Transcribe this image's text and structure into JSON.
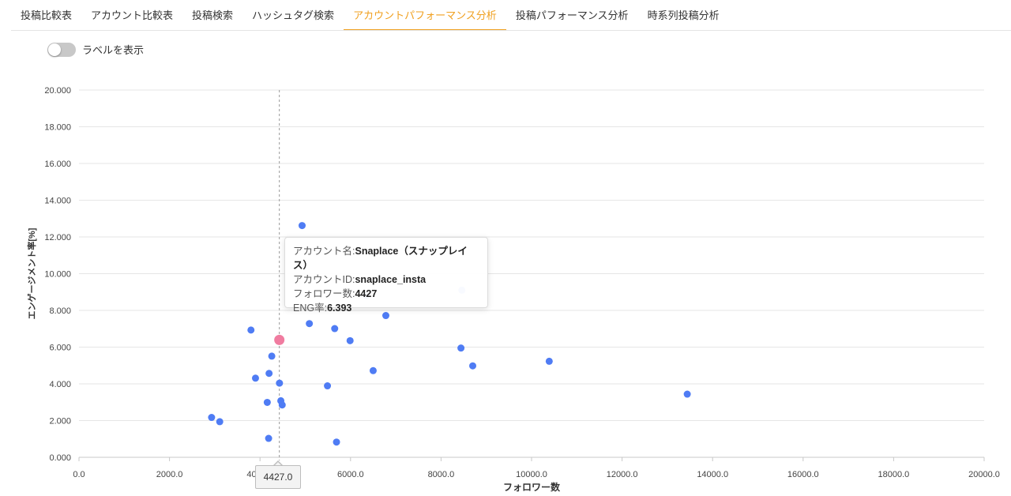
{
  "tabs": [
    {
      "label": "投稿比較表",
      "active": false
    },
    {
      "label": "アカウント比較表",
      "active": false
    },
    {
      "label": "投稿検索",
      "active": false
    },
    {
      "label": "ハッシュタグ検索",
      "active": false
    },
    {
      "label": "アカウントパフォーマンス分析",
      "active": true
    },
    {
      "label": "投稿パフォーマンス分析",
      "active": false
    },
    {
      "label": "時系列投稿分析",
      "active": false
    }
  ],
  "toggle": {
    "label": "ラベルを表示",
    "on": false
  },
  "colors": {
    "accent": "#f0a020",
    "point": "#4f7cf4",
    "highlight": "#f07ca0"
  },
  "tooltip": {
    "name_label": "アカウント名:",
    "name_value": "Snaplace（スナップレイス）",
    "id_label": "アカウントID:",
    "id_value": "snaplace_insta",
    "followers_label": "フォロワー数:",
    "followers_value": "4427",
    "eng_label": "ENG率:",
    "eng_value": "6.393"
  },
  "crosshair": {
    "x_label": "4427.0"
  },
  "chart_data": {
    "type": "scatter",
    "xlabel": "フォロワー数",
    "ylabel": "エンゲージメント率[%]",
    "xlim": [
      0,
      20000
    ],
    "ylim": [
      0,
      20
    ],
    "x_ticks": [
      "0.0",
      "2000.0",
      "4000.0",
      "6000.0",
      "8000.0",
      "10000.0",
      "12000.0",
      "14000.0",
      "16000.0",
      "18000.0",
      "20000.0"
    ],
    "y_ticks": [
      "0.000",
      "2.000",
      "4.000",
      "6.000",
      "8.000",
      "10.000",
      "12.000",
      "14.000",
      "16.000",
      "18.000",
      "20.000"
    ],
    "grid": true,
    "points": [
      {
        "x": 2930,
        "y": 2.17
      },
      {
        "x": 3110,
        "y": 1.94
      },
      {
        "x": 3800,
        "y": 6.93
      },
      {
        "x": 3900,
        "y": 4.31
      },
      {
        "x": 4160,
        "y": 2.99
      },
      {
        "x": 4200,
        "y": 4.57
      },
      {
        "x": 4260,
        "y": 5.51
      },
      {
        "x": 4190,
        "y": 1.03
      },
      {
        "x": 4430,
        "y": 4.04
      },
      {
        "x": 4460,
        "y": 3.08
      },
      {
        "x": 4490,
        "y": 2.85
      },
      {
        "x": 4930,
        "y": 12.62
      },
      {
        "x": 5090,
        "y": 7.28
      },
      {
        "x": 5490,
        "y": 3.89
      },
      {
        "x": 5650,
        "y": 7.01
      },
      {
        "x": 5690,
        "y": 0.83
      },
      {
        "x": 5990,
        "y": 6.35
      },
      {
        "x": 6350,
        "y": 8.8
      },
      {
        "x": 6500,
        "y": 4.72
      },
      {
        "x": 6780,
        "y": 7.72
      },
      {
        "x": 8460,
        "y": 9.1
      },
      {
        "x": 8440,
        "y": 5.95
      },
      {
        "x": 8700,
        "y": 4.98
      },
      {
        "x": 10390,
        "y": 5.23
      },
      {
        "x": 13440,
        "y": 3.44
      }
    ],
    "highlight": {
      "x": 4427,
      "y": 6.393
    }
  }
}
